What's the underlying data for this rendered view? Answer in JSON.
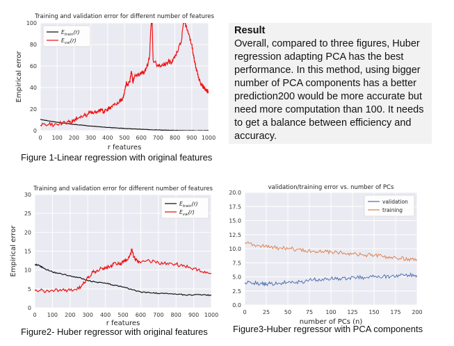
{
  "result": {
    "title": "Result",
    "text": "Overall, compared to three figures, Huber regression adapting PCA has the best performance. In this method, using bigger number of PCA components has a better prediction200 would be more accurate but need more computation than 100. It needs to get a balance between efficiency and accuracy."
  },
  "captions": {
    "fig1": "Figure 1-Linear regression with original features",
    "fig2": "Figure2- Huber regressor with original features",
    "fig3": "Figure3-Huber regressor with PCA components"
  },
  "chart_data": [
    {
      "id": "fig1",
      "type": "line",
      "title": "Training and validation error for different number of features",
      "xlabel": "r features",
      "ylabel": "Empirical error",
      "xlim": [
        0,
        1000
      ],
      "ylim": [
        0,
        100
      ],
      "xticks": [
        0,
        100,
        200,
        300,
        400,
        500,
        600,
        700,
        800,
        900,
        1000
      ],
      "yticks": [
        0,
        20,
        40,
        60,
        80,
        100
      ],
      "grid": true,
      "legend_position": "top-left",
      "series": [
        {
          "name": "E_train(r)",
          "label_main": "E",
          "label_sub": "train",
          "label_arg": "(r)",
          "color": "#111111",
          "x": [
            0,
            50,
            100,
            150,
            200,
            250,
            300,
            350,
            400,
            450,
            500,
            550,
            600,
            650,
            700,
            750,
            800,
            850,
            900,
            950,
            1000
          ],
          "y": [
            10.5,
            9,
            7.8,
            6.8,
            5.8,
            5,
            4.2,
            3.6,
            3,
            2.5,
            2,
            1.6,
            1.2,
            0.9,
            0.6,
            0.4,
            0.2,
            0.1,
            0,
            0,
            0
          ]
        },
        {
          "name": "E_val(r)",
          "label_main": "E",
          "label_sub": "val",
          "label_arg": "(r)",
          "color": "#ee1111",
          "x": [
            0,
            50,
            100,
            150,
            180,
            200,
            230,
            260,
            280,
            300,
            320,
            340,
            360,
            380,
            400,
            420,
            450,
            470,
            490,
            500,
            510,
            520,
            530,
            535,
            540,
            545,
            550,
            560,
            580,
            600,
            620,
            630,
            640,
            650,
            655,
            660,
            665,
            670,
            700,
            720,
            740,
            760,
            780,
            800,
            820,
            840,
            850,
            860,
            870,
            880,
            900,
            910,
            920,
            930,
            940,
            950,
            960,
            970,
            980,
            990,
            1000
          ],
          "y": [
            5,
            5.5,
            6,
            7,
            8,
            10,
            12,
            14,
            15,
            18,
            17,
            18,
            19,
            18,
            20,
            22,
            24,
            27,
            30,
            35,
            44,
            43,
            45,
            48,
            55,
            52,
            45,
            50,
            52,
            53,
            55,
            58,
            62,
            70,
            90,
            100,
            100,
            66,
            60,
            60,
            62,
            64,
            63,
            68,
            75,
            85,
            100,
            100,
            95,
            90,
            80,
            70,
            62,
            55,
            50,
            45,
            42,
            40,
            39,
            37,
            36
          ]
        }
      ]
    },
    {
      "id": "fig2",
      "type": "line",
      "title": "Training and validation error for different number of features",
      "xlabel": "r features",
      "ylabel": "Empirical error",
      "xlim": [
        0,
        1000
      ],
      "ylim": [
        0,
        30
      ],
      "xticks": [
        0,
        100,
        200,
        300,
        400,
        500,
        600,
        700,
        800,
        900,
        1000
      ],
      "yticks": [
        0,
        5,
        10,
        15,
        20,
        25,
        30
      ],
      "grid": true,
      "legend_position": "top-right",
      "series": [
        {
          "name": "E_train(r)",
          "label_main": "E",
          "label_sub": "train",
          "label_arg": "(r)",
          "color": "#111111",
          "x": [
            0,
            25,
            50,
            100,
            150,
            200,
            250,
            300,
            350,
            400,
            450,
            500,
            550,
            600,
            650,
            700,
            750,
            800,
            850,
            900,
            950,
            1000
          ],
          "y": [
            11.5,
            11.2,
            10.5,
            9.5,
            9,
            8.5,
            8,
            7.2,
            6.8,
            6.5,
            6,
            5.5,
            4.8,
            4.2,
            4,
            3.8,
            3.8,
            3.6,
            3.4,
            3.4,
            3.4,
            3.3
          ]
        },
        {
          "name": "E_val(r)",
          "label_main": "E",
          "label_sub": "val",
          "label_arg": "(r)",
          "color": "#ee1111",
          "x": [
            0,
            50,
            100,
            150,
            200,
            250,
            280,
            300,
            330,
            350,
            380,
            400,
            430,
            450,
            480,
            500,
            520,
            540,
            550,
            560,
            580,
            600,
            650,
            700,
            750,
            800,
            850,
            900,
            950,
            1000
          ],
          "y": [
            4.5,
            4.5,
            4.6,
            4.5,
            4.6,
            5,
            6.5,
            8,
            9.5,
            9.8,
            10.5,
            10.5,
            11,
            12,
            11.5,
            12,
            12.5,
            14,
            15.5,
            13.5,
            12.5,
            12,
            12.5,
            12,
            11.8,
            11.5,
            11,
            10.5,
            9.5,
            9
          ]
        }
      ]
    },
    {
      "id": "fig3",
      "type": "line",
      "title": "validation/training error vs. number of PCs",
      "xlabel": "number of PCs (n)",
      "ylabel": "",
      "xlim": [
        0,
        200
      ],
      "ylim": [
        0,
        20
      ],
      "xticks": [
        0,
        25,
        50,
        75,
        100,
        125,
        150,
        175,
        200
      ],
      "yticks": [
        0.0,
        2.5,
        5.0,
        7.5,
        10.0,
        12.5,
        15.0,
        17.5,
        20.0
      ],
      "grid": true,
      "legend_position": "top-right",
      "series": [
        {
          "name": "validation",
          "color": "#4c72b0",
          "x": [
            0,
            10,
            20,
            25,
            30,
            40,
            50,
            60,
            70,
            80,
            90,
            100,
            110,
            120,
            130,
            140,
            150,
            160,
            170,
            180,
            190,
            200
          ],
          "y": [
            4.0,
            3.9,
            3.8,
            3.6,
            3.8,
            3.9,
            4.0,
            4.1,
            4.2,
            4.5,
            4.6,
            4.7,
            4.7,
            4.8,
            4.9,
            4.8,
            5.0,
            5.0,
            5.1,
            5.2,
            5.3,
            5.3
          ]
        },
        {
          "name": "training",
          "color": "#dd8452",
          "x": [
            0,
            10,
            20,
            30,
            40,
            50,
            60,
            70,
            80,
            90,
            100,
            110,
            120,
            130,
            140,
            150,
            160,
            170,
            180,
            190,
            200
          ],
          "y": [
            11.0,
            10.7,
            10.5,
            10.3,
            10.1,
            10.0,
            9.9,
            9.7,
            9.6,
            9.5,
            9.4,
            9.3,
            9.2,
            9.0,
            8.9,
            8.8,
            8.6,
            8.5,
            8.3,
            8.2,
            8.1
          ]
        }
      ]
    }
  ]
}
